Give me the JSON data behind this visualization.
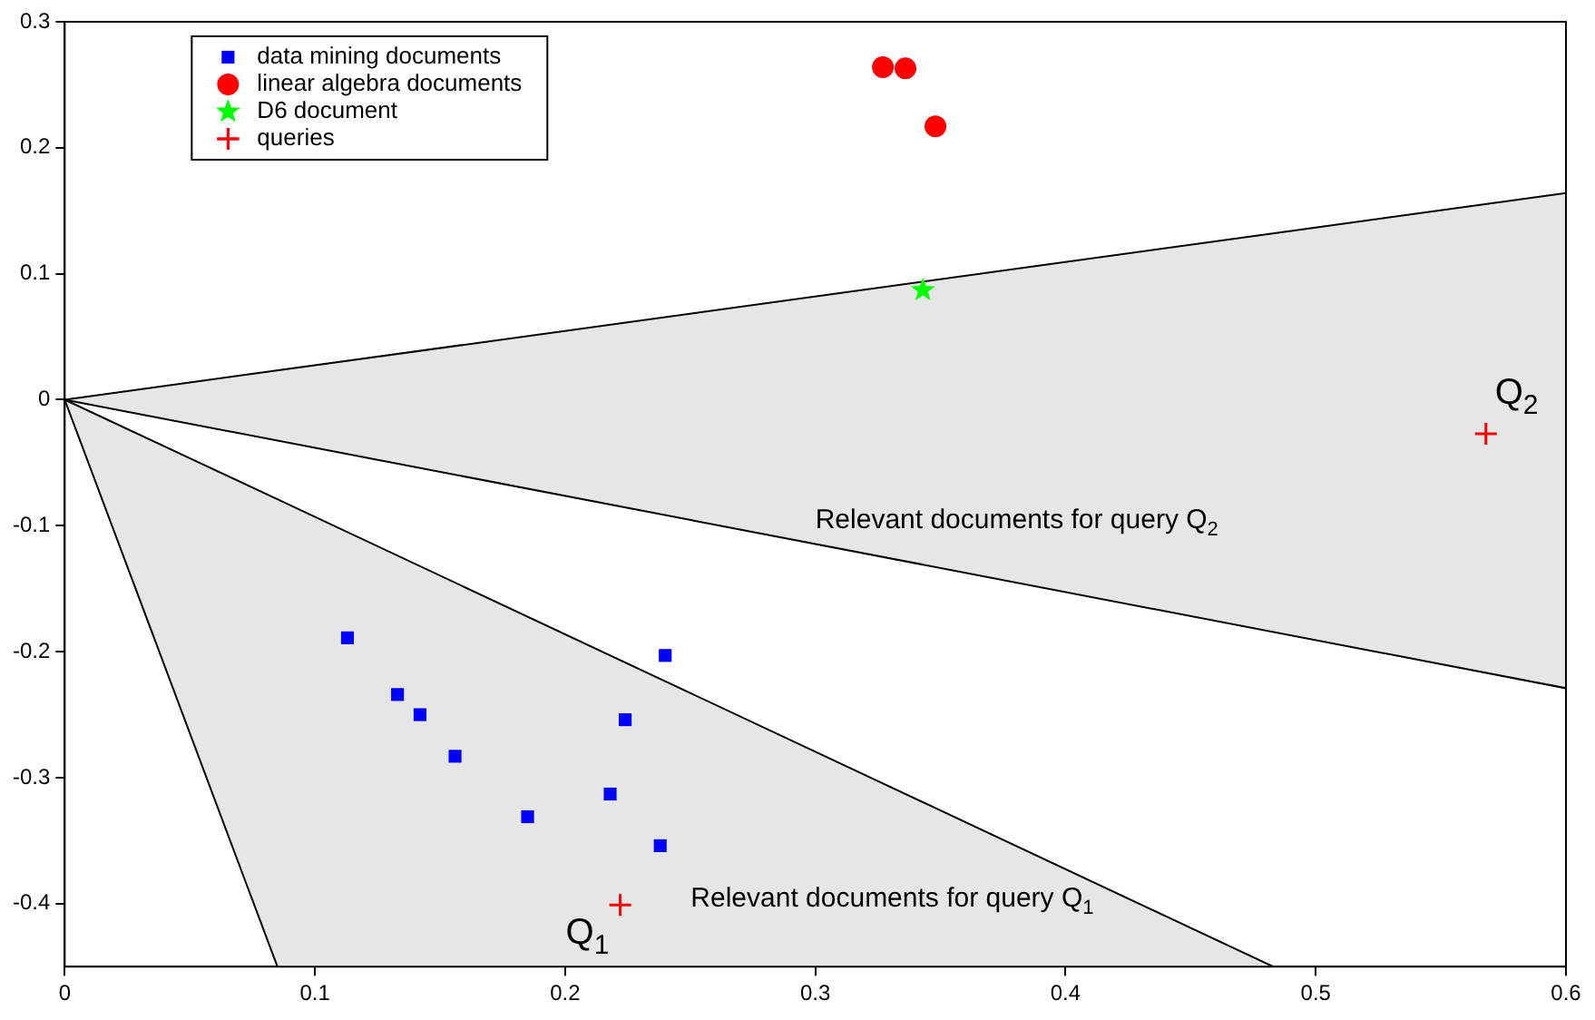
{
  "chart_data": {
    "type": "scatter",
    "xlim": [
      0,
      0.6
    ],
    "xticks": [
      0,
      0.1,
      0.2,
      0.3,
      0.4,
      0.5,
      0.6
    ],
    "ylim": [
      -0.45,
      0.3
    ],
    "yticks": [
      -0.4,
      -0.3,
      -0.2,
      -0.1,
      0,
      0.1,
      0.2,
      0.3
    ],
    "grid": false,
    "legend": "top left",
    "series": [
      {
        "type": "line",
        "color": "#000000",
        "marker": "none",
        "x": [
          0,
          0.6
        ],
        "values": [
          0,
          0.164
        ],
        "lower": [
          0,
          -0.229
        ],
        "upper": [
          0,
          0.164
        ]
      },
      {
        "type": "line",
        "color": "#000000",
        "marker": "none",
        "x": [
          0,
          0.6
        ],
        "values": [
          0,
          -0.229
        ]
      },
      {
        "type": "line",
        "color": "#000000",
        "marker": "none",
        "x": [
          0,
          0.085,
          0.483
        ],
        "values": [
          0,
          -0.079,
          -0.45
        ],
        "lower": [
          0,
          -0.45,
          -0.45
        ],
        "upper": [
          0,
          -0.079,
          -0.45
        ]
      },
      {
        "type": "line",
        "color": "#000000",
        "marker": "none",
        "x": [
          0,
          0.085
        ],
        "values": [
          0,
          -0.45
        ]
      },
      {
        "name": "data mining documents",
        "color": "#0000ff",
        "marker": "square",
        "x": [
          0.113,
          0.133,
          0.142,
          0.156,
          0.185,
          0.218,
          0.224,
          0.24,
          0.238
        ],
        "values": [
          -0.189,
          -0.234,
          -0.25,
          -0.283,
          -0.331,
          -0.313,
          -0.254,
          -0.203,
          -0.354
        ]
      },
      {
        "name": "linear algebra documents",
        "color": "#ff0000",
        "marker": "circle",
        "x": [
          0.327,
          0.336,
          0.348
        ],
        "values": [
          0.264,
          0.263,
          0.217
        ]
      },
      {
        "name": "D6 document",
        "color": "#00ff00",
        "marker": "star",
        "x": [
          0.343
        ],
        "values": [
          0.087
        ]
      },
      {
        "name": "queries",
        "color": "#ff0000",
        "marker": "cross",
        "x": [
          0.222,
          0.568
        ],
        "values": [
          -0.401,
          -0.027
        ]
      }
    ],
    "annotations": [
      {
        "text": "Q$_{2}$",
        "x": 0.568,
        "y": -0.027
      },
      "Relevant documents for query Q$_{2}$",
      {
        "text": "Q$_{1}$",
        "x": 0.222,
        "y": -0.401
      },
      "Relevant documents for query Q$_{1}$"
    ]
  }
}
